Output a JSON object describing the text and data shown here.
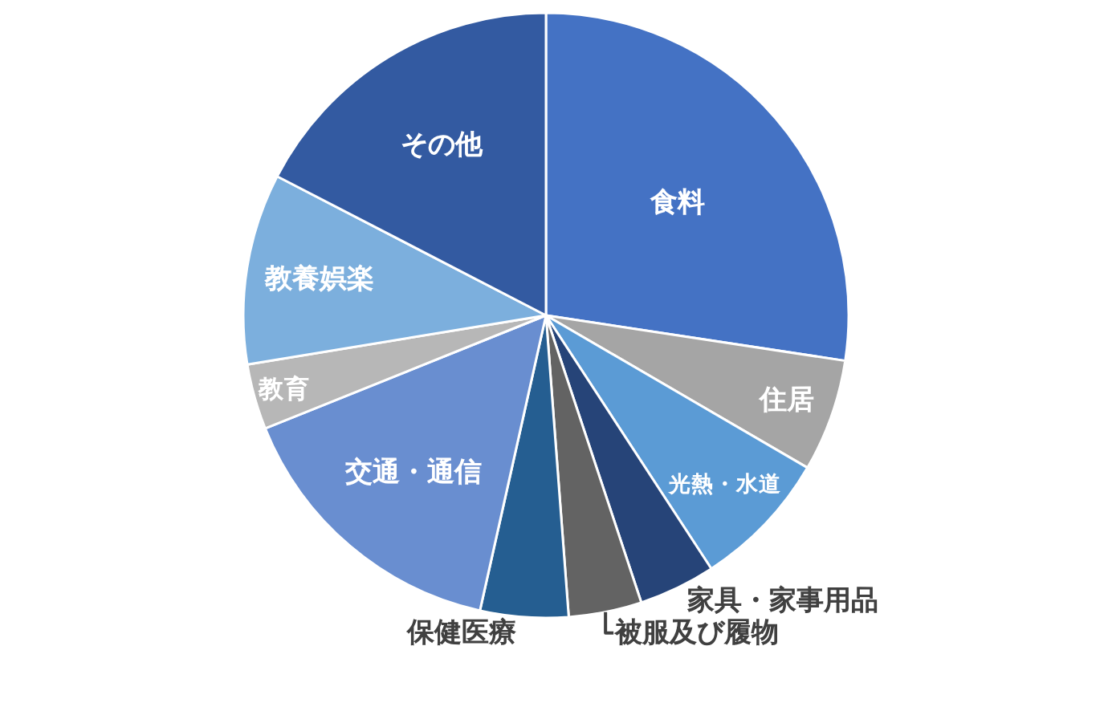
{
  "chart_data": {
    "type": "pie",
    "categories": [
      "食料",
      "住居",
      "光熱・水道",
      "家具・家事用品",
      "被服及び履物",
      "保健医療",
      "交通・通信",
      "教育",
      "教養娯楽",
      "その他"
    ],
    "values": [
      27.4,
      6.0,
      7.4,
      4.1,
      3.9,
      4.7,
      15.4,
      3.5,
      10.2,
      17.4
    ],
    "colors": [
      "#4472c4",
      "#a5a5a5",
      "#5b9bd5",
      "#264478",
      "#636363",
      "#255e91",
      "#698ed0",
      "#b7b7b7",
      "#7cafdd",
      "#335aa1"
    ],
    "legend": false
  }
}
